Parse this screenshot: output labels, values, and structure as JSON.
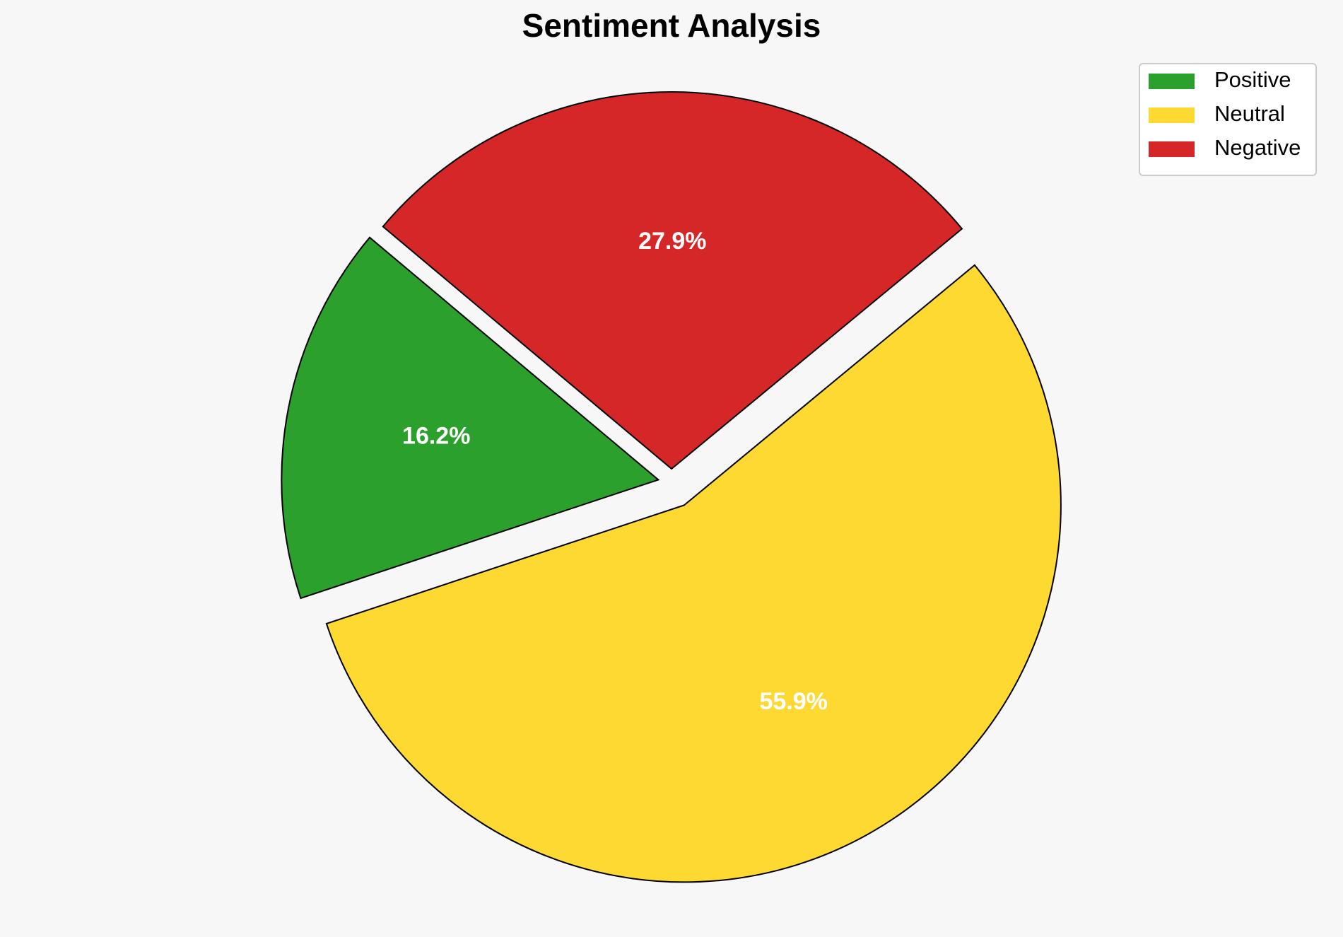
{
  "chart_data": {
    "type": "pie",
    "title": "Sentiment Analysis",
    "categories": [
      "Positive",
      "Neutral",
      "Negative"
    ],
    "values": [
      16.2,
      55.9,
      27.9
    ],
    "value_labels": [
      "16.2%",
      "55.9%",
      "27.9%"
    ],
    "colors": [
      "#2ca02c",
      "#fed931",
      "#d62728"
    ],
    "start_angle": 140,
    "legend": "upper right"
  }
}
